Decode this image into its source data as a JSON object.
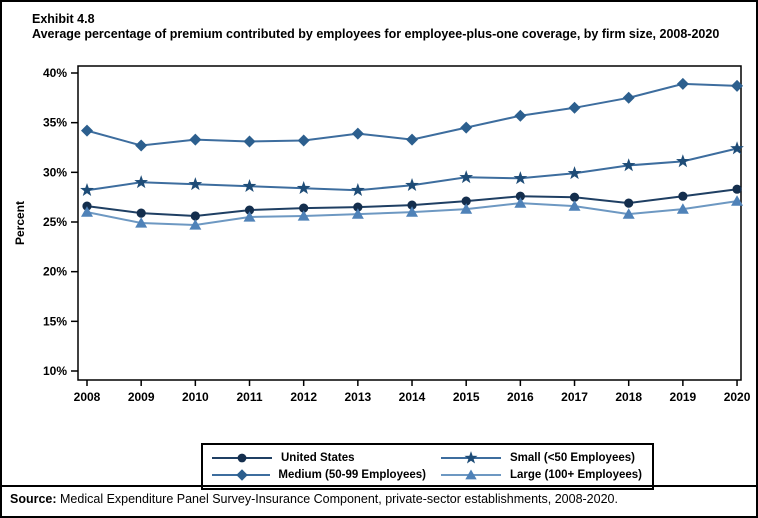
{
  "header": {
    "exhibit": "Exhibit 4.8",
    "title": "Average percentage of premium contributed by employees for employee-plus-one coverage, by firm size, 2008-2020"
  },
  "source": {
    "label": "Source:",
    "text": " Medical Expenditure Panel Survey-Insurance Component, private-sector establishments, 2008-2020."
  },
  "chart_data": {
    "type": "line",
    "title": "Average percentage of premium contributed by employees for employee-plus-one coverage, by firm size, 2008-2020",
    "xlabel": "",
    "ylabel": "Percent",
    "categories": [
      "2008",
      "2009",
      "2010",
      "2011",
      "2012",
      "2013",
      "2014",
      "2015",
      "2016",
      "2017",
      "2018",
      "2019",
      "2020"
    ],
    "ylim": [
      10,
      40
    ],
    "ytick_step": 5,
    "ytick_suffix": "%",
    "grid": false,
    "legend_position": "bottom",
    "frame_color": "#000000",
    "series": [
      {
        "name": "United States",
        "marker": "circle",
        "color": "#142e4d",
        "line_color": "#1f3f63",
        "values": [
          26.6,
          25.9,
          25.6,
          26.2,
          26.4,
          26.5,
          26.7,
          27.1,
          27.6,
          27.5,
          26.9,
          27.6,
          28.3
        ]
      },
      {
        "name": "Medium (50-99 Employees)",
        "marker": "diamond",
        "color": "#2c5f8e",
        "line_color": "#3d6d9e",
        "values": [
          34.2,
          32.7,
          33.3,
          33.1,
          33.2,
          33.9,
          33.3,
          34.5,
          35.7,
          36.5,
          37.5,
          38.9,
          38.7
        ]
      },
      {
        "name": "Small (<50 Employees)",
        "marker": "star",
        "color": "#1e4c77",
        "line_color": "#3d6d9e",
        "values": [
          28.2,
          29.0,
          28.8,
          28.6,
          28.4,
          28.2,
          28.7,
          29.5,
          29.4,
          29.9,
          30.7,
          31.1,
          32.4
        ]
      },
      {
        "name": "Large (100+ Employees)",
        "marker": "triangle",
        "color": "#4f82b8",
        "line_color": "#6d98c2",
        "values": [
          26.0,
          24.9,
          24.7,
          25.5,
          25.6,
          25.8,
          26.0,
          26.3,
          26.9,
          26.6,
          25.8,
          26.3,
          27.1
        ]
      }
    ]
  }
}
